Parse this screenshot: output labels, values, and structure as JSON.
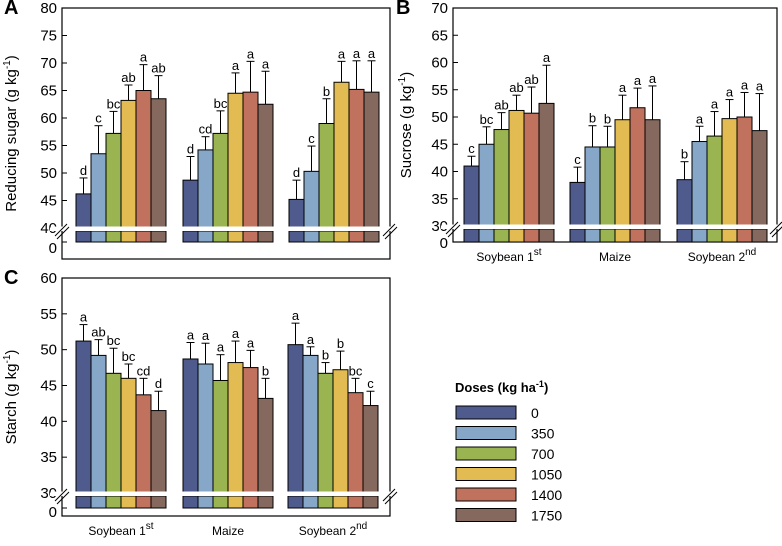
{
  "colors": [
    "#4f5b8d",
    "#86a7c7",
    "#99b451",
    "#e2bc52",
    "#c0725e",
    "#85695e"
  ],
  "legend": {
    "title_pre": "Doses (kg ha",
    "title_sup": "-1",
    "title_post": ")",
    "labels": [
      "0",
      "350",
      "700",
      "1050",
      "1400",
      "1750"
    ]
  },
  "chart_data": [
    {
      "panel": "A",
      "type": "bar",
      "ylabel_pre": "Reducing sugar (g kg",
      "ylabel_sup": "-1",
      "ylabel_post": ")",
      "ylim": [
        40,
        80
      ],
      "yticks": [
        "40",
        "45",
        "50",
        "55",
        "60",
        "65",
        "70",
        "75",
        "80"
      ],
      "axis_break": true,
      "zero_label": "0",
      "categories": [],
      "groups": [
        {
          "values": [
            46.2,
            53.5,
            57.2,
            63.2,
            65.0,
            63.5
          ],
          "errors": [
            2.9,
            5.1,
            4.0,
            2.8,
            4.7,
            4.2
          ],
          "letters": [
            "d",
            "c",
            "bc",
            "ab",
            "a",
            "ab"
          ]
        },
        {
          "values": [
            48.7,
            54.2,
            57.2,
            64.5,
            64.7,
            62.5
          ],
          "errors": [
            4.3,
            2.4,
            4.1,
            3.7,
            5.6,
            6.0
          ],
          "letters": [
            "d",
            "cd",
            "bc",
            "a",
            "a",
            "a"
          ]
        },
        {
          "values": [
            45.2,
            50.3,
            59.0,
            66.5,
            65.2,
            64.7
          ],
          "errors": [
            3.5,
            4.6,
            4.5,
            3.8,
            5.2,
            5.7
          ],
          "letters": [
            "d",
            "c",
            "b",
            "a",
            "a",
            "a"
          ]
        }
      ]
    },
    {
      "panel": "B",
      "type": "bar",
      "ylabel_pre": "Sucrose (g kg",
      "ylabel_sup": "-1",
      "ylabel_post": ")",
      "ylim": [
        30,
        70
      ],
      "yticks": [
        "30",
        "35",
        "40",
        "45",
        "50",
        "55",
        "60",
        "65",
        "70"
      ],
      "axis_break": true,
      "zero_label": "0",
      "categories": [
        {
          "main": "Soybean 1",
          "sup": "st"
        },
        {
          "main": "Maize",
          "sup": ""
        },
        {
          "main": "Soybean 2",
          "sup": "nd"
        }
      ],
      "groups": [
        {
          "values": [
            41.0,
            45.0,
            47.7,
            51.2,
            50.7,
            52.5
          ],
          "errors": [
            1.8,
            3.2,
            3.1,
            2.8,
            4.8,
            7.0
          ],
          "letters": [
            "c",
            "bc",
            "ab",
            "ab",
            "ab",
            "a"
          ]
        },
        {
          "values": [
            38.0,
            44.5,
            44.5,
            49.5,
            51.7,
            49.5
          ],
          "errors": [
            2.8,
            3.9,
            3.8,
            4.5,
            3.6,
            6.2
          ],
          "letters": [
            "c",
            "b",
            "b",
            "a",
            "a",
            "a"
          ]
        },
        {
          "values": [
            38.5,
            45.5,
            46.5,
            49.7,
            50.0,
            47.5
          ],
          "errors": [
            3.3,
            2.8,
            4.5,
            3.5,
            4.5,
            6.8
          ],
          "letters": [
            "b",
            "a",
            "a",
            "a",
            "a",
            "a"
          ]
        }
      ]
    },
    {
      "panel": "C",
      "type": "bar",
      "ylabel_pre": "Starch (g kg",
      "ylabel_sup": "-1",
      "ylabel_post": ")",
      "ylim": [
        30,
        60
      ],
      "yticks": [
        "30",
        "35",
        "40",
        "45",
        "50",
        "55",
        "60"
      ],
      "axis_break": true,
      "zero_label": "0",
      "categories": [
        {
          "main": "Soybean 1",
          "sup": "st"
        },
        {
          "main": "Maize",
          "sup": ""
        },
        {
          "main": "Soybean 2",
          "sup": "nd"
        }
      ],
      "groups": [
        {
          "values": [
            51.2,
            49.2,
            46.7,
            46.0,
            43.7,
            41.5
          ],
          "errors": [
            2.3,
            2.2,
            3.5,
            2.0,
            2.3,
            2.7
          ],
          "letters": [
            "a",
            "ab",
            "bc",
            "bc",
            "cd",
            "d"
          ]
        },
        {
          "values": [
            48.7,
            48.0,
            45.7,
            48.2,
            47.5,
            43.2
          ],
          "errors": [
            2.3,
            2.9,
            3.6,
            3.0,
            2.4,
            2.8
          ],
          "letters": [
            "a",
            "a",
            "a",
            "a",
            "a",
            "b"
          ]
        },
        {
          "values": [
            50.7,
            49.2,
            46.7,
            47.2,
            44.0,
            42.2
          ],
          "errors": [
            3.0,
            1.2,
            1.5,
            2.6,
            2.0,
            2.0
          ],
          "letters": [
            "a",
            "a",
            "b",
            "b",
            "bc",
            "c"
          ]
        }
      ]
    }
  ]
}
